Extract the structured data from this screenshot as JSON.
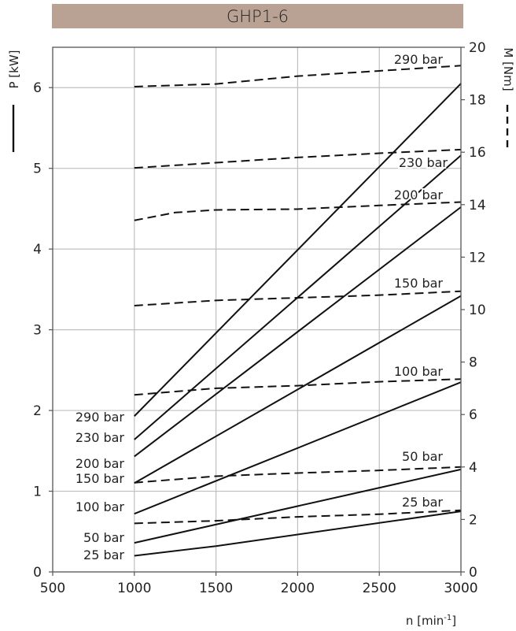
{
  "chart_data": {
    "type": "line",
    "title": "GHP1-6",
    "xlabel": "n [min",
    "xlabel_sup": "-1",
    "xlabel_close": "]",
    "ylabel_left": "P [kW]",
    "ylabel_right": "M [Nm]",
    "xlim": [
      500,
      3000
    ],
    "ylim_left": [
      0,
      6.5
    ],
    "ylim_right": [
      0,
      20
    ],
    "x_ticks": [
      "500",
      "1000",
      "1500",
      "2000",
      "2500",
      "3000"
    ],
    "y_left_ticks": [
      "0",
      "1",
      "2",
      "3",
      "4",
      "5",
      "6"
    ],
    "y_right_ticks": [
      "0",
      "2",
      "4",
      "6",
      "8",
      "10",
      "12",
      "14",
      "16",
      "18",
      "20"
    ],
    "grid": true,
    "power_series": [
      {
        "name": "290 bar",
        "x": [
          1000,
          3000
        ],
        "y": [
          1.93,
          6.05
        ]
      },
      {
        "name": "230 bar",
        "x": [
          1000,
          3000
        ],
        "y": [
          1.64,
          5.16
        ]
      },
      {
        "name": "200 bar",
        "x": [
          1000,
          3000
        ],
        "y": [
          1.43,
          4.52
        ]
      },
      {
        "name": "150 bar",
        "x": [
          1000,
          3000
        ],
        "y": [
          1.1,
          3.42
        ]
      },
      {
        "name": "100 bar",
        "x": [
          1000,
          3000
        ],
        "y": [
          0.72,
          2.35
        ]
      },
      {
        "name": "50 bar",
        "x": [
          1000,
          3000
        ],
        "y": [
          0.36,
          1.27
        ]
      },
      {
        "name": "25 bar",
        "x": [
          1000,
          1500,
          3000
        ],
        "y": [
          0.2,
          0.32,
          0.75
        ]
      }
    ],
    "torque_series": [
      {
        "name": "290 bar",
        "x": [
          1000,
          1500,
          2000,
          2500,
          3000
        ],
        "y": [
          18.5,
          18.6,
          18.9,
          19.1,
          19.3
        ]
      },
      {
        "name": "230 bar",
        "x": [
          1000,
          1500,
          2000,
          2500,
          3000
        ],
        "y": [
          15.4,
          15.6,
          15.8,
          15.96,
          16.1
        ]
      },
      {
        "name": "200 bar",
        "x": [
          1000,
          1250,
          1500,
          2000,
          2500,
          3000
        ],
        "y": [
          13.4,
          13.7,
          13.8,
          13.83,
          13.97,
          14.1
        ]
      },
      {
        "name": "150 bar",
        "x": [
          1000,
          1500,
          2000,
          2500,
          3000
        ],
        "y": [
          10.15,
          10.35,
          10.45,
          10.55,
          10.7
        ]
      },
      {
        "name": "100 bar",
        "x": [
          1000,
          1500,
          2000,
          2500,
          3000
        ],
        "y": [
          6.75,
          7.0,
          7.1,
          7.25,
          7.35
        ]
      },
      {
        "name": "50 bar",
        "x": [
          1000,
          1500,
          2000,
          2500,
          3000
        ],
        "y": [
          3.4,
          3.65,
          3.77,
          3.87,
          4.0
        ]
      },
      {
        "name": "25 bar",
        "x": [
          1000,
          1500,
          2000,
          2500,
          3000
        ],
        "y": [
          1.85,
          1.95,
          2.1,
          2.2,
          2.35
        ]
      }
    ],
    "left_labels": [
      "290 bar",
      "230 bar",
      "200 bar",
      "150 bar",
      "100 bar",
      "50 bar",
      "25 bar"
    ],
    "right_labels": [
      "290 bar",
      "230 bar",
      "200 bar",
      "150 bar",
      "100 bar",
      "50 bar",
      "25 bar"
    ]
  }
}
